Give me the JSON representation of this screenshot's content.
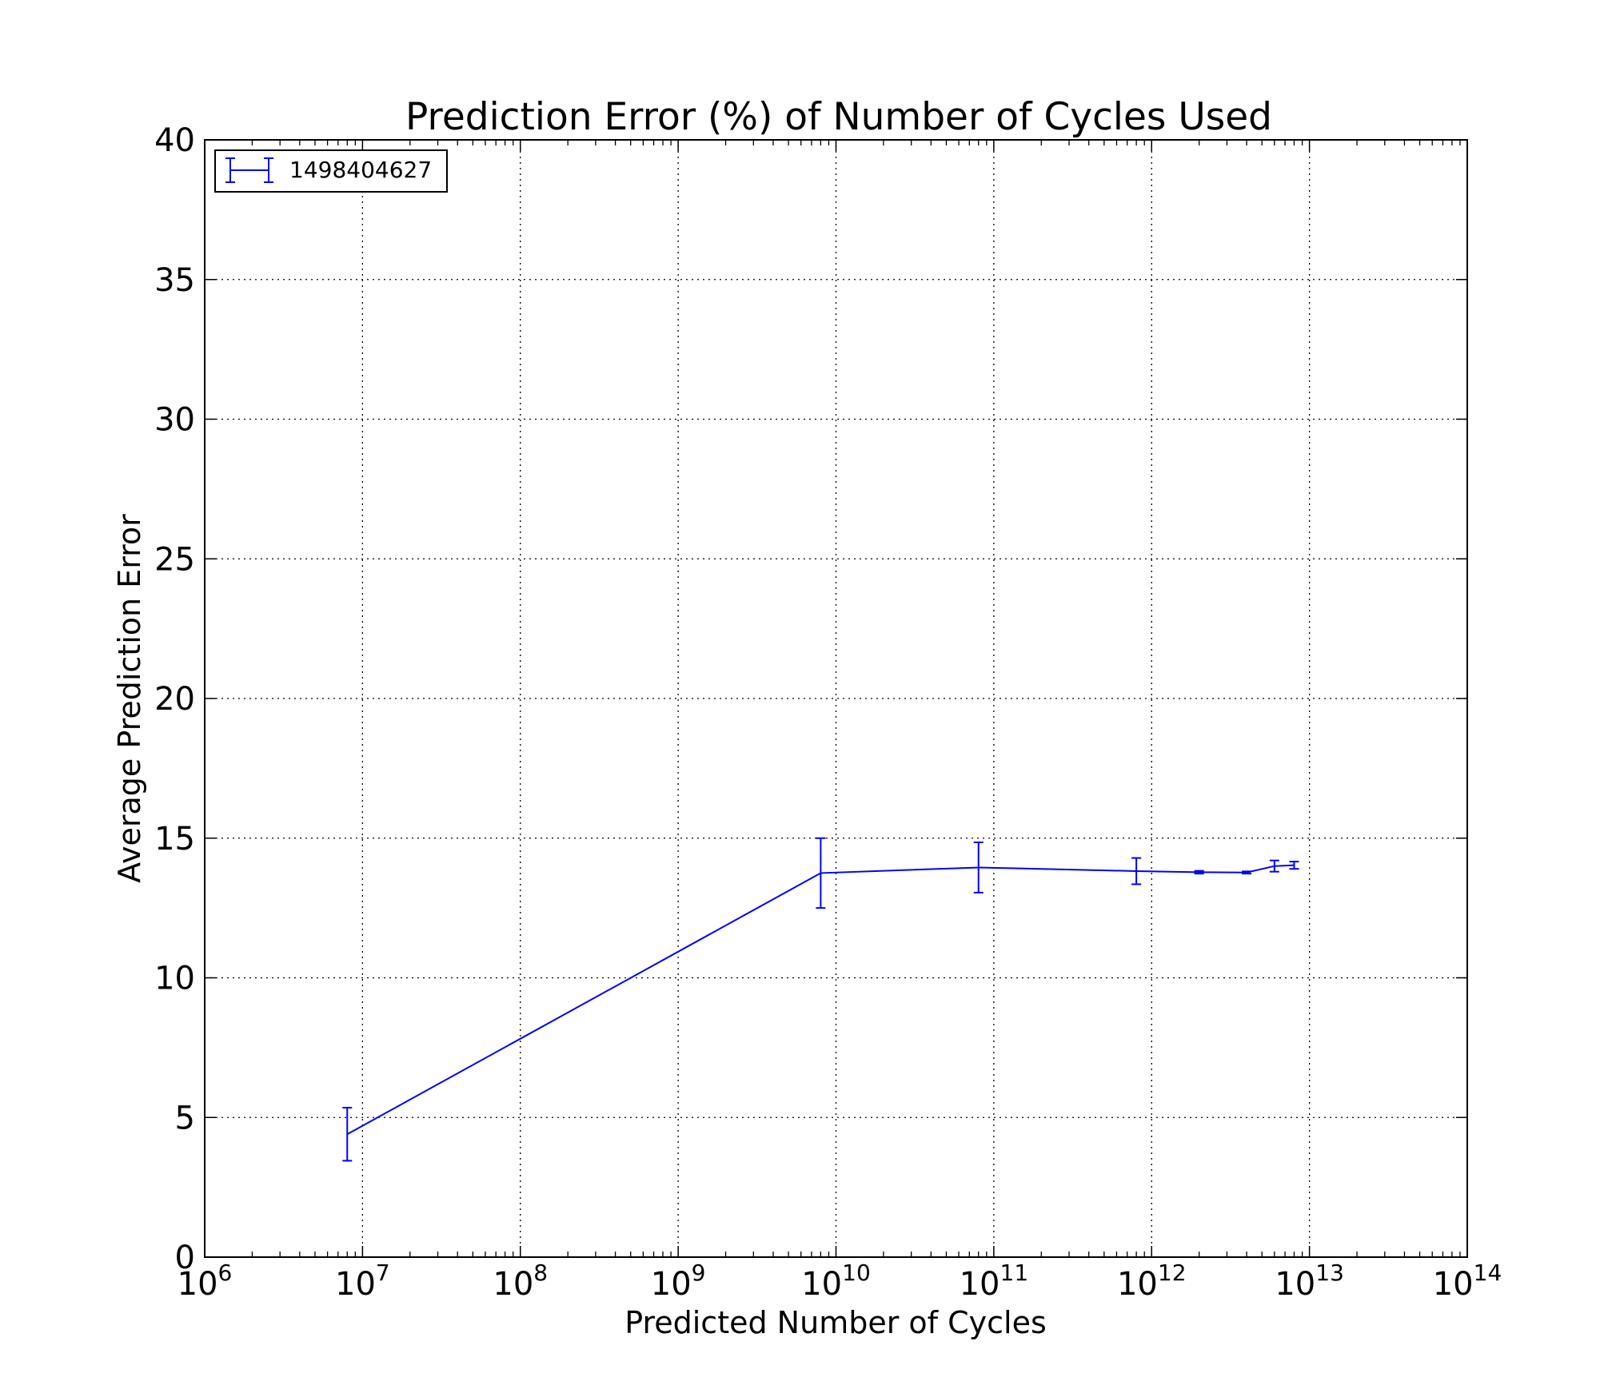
{
  "chart_data": {
    "type": "line",
    "title": "Prediction Error (%) of Number of Cycles Used",
    "xlabel": "Predicted Number of Cycles",
    "ylabel": "Average Prediction Error",
    "xscale": "log",
    "xlim": [
      1000000,
      100000000000000
    ],
    "ylim": [
      0,
      40
    ],
    "grid": true,
    "legend_position": "top-left",
    "x_ticks": [
      {
        "base": "10",
        "exp": "6"
      },
      {
        "base": "10",
        "exp": "7"
      },
      {
        "base": "10",
        "exp": "8"
      },
      {
        "base": "10",
        "exp": "9"
      },
      {
        "base": "10",
        "exp": "10"
      },
      {
        "base": "10",
        "exp": "11"
      },
      {
        "base": "10",
        "exp": "12"
      },
      {
        "base": "10",
        "exp": "13"
      },
      {
        "base": "10",
        "exp": "14"
      }
    ],
    "y_ticks": [
      "0",
      "5",
      "10",
      "15",
      "20",
      "25",
      "30",
      "35",
      "40"
    ],
    "series": [
      {
        "name": "1498404627",
        "color": "#0000ff",
        "points": [
          {
            "x": 8000000,
            "y": 4.4,
            "err": 0.95
          },
          {
            "x": 8000000000,
            "y": 13.75,
            "err": 1.25
          },
          {
            "x": 80000000000,
            "y": 13.95,
            "err": 0.9
          },
          {
            "x": 800000000000,
            "y": 13.82,
            "err": 0.47
          },
          {
            "x": 2000000000000,
            "y": 13.78,
            "err": 0.05
          },
          {
            "x": 4000000000000,
            "y": 13.77,
            "err": 0.04
          },
          {
            "x": 6000000000000,
            "y": 14.0,
            "err": 0.2
          },
          {
            "x": 8000000000000,
            "y": 14.03,
            "err": 0.13
          }
        ]
      }
    ]
  }
}
